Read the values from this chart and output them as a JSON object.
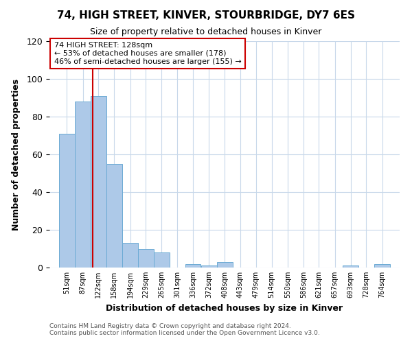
{
  "title": "74, HIGH STREET, KINVER, STOURBRIDGE, DY7 6ES",
  "subtitle": "Size of property relative to detached houses in Kinver",
  "xlabel": "Distribution of detached houses by size in Kinver",
  "ylabel": "Number of detached properties",
  "bar_color": "#adc9e8",
  "bar_edge_color": "#6aaad4",
  "background_color": "#ffffff",
  "grid_color": "#c8d8ea",
  "annotation_box_color": "#cc0000",
  "vline_color": "#cc0000",
  "bin_edges": [
    51,
    87,
    122,
    158,
    194,
    229,
    265,
    301,
    336,
    372,
    408,
    443,
    479,
    514,
    550,
    586,
    621,
    657,
    693,
    728,
    764
  ],
  "bar_heights": [
    71,
    88,
    91,
    55,
    13,
    10,
    8,
    0,
    2,
    1,
    3,
    0,
    0,
    0,
    0,
    0,
    0,
    0,
    1,
    0,
    2
  ],
  "tick_labels": [
    "51sqm",
    "87sqm",
    "122sqm",
    "158sqm",
    "194sqm",
    "229sqm",
    "265sqm",
    "301sqm",
    "336sqm",
    "372sqm",
    "408sqm",
    "443sqm",
    "479sqm",
    "514sqm",
    "550sqm",
    "586sqm",
    "621sqm",
    "657sqm",
    "693sqm",
    "728sqm",
    "764sqm"
  ],
  "ylim": [
    0,
    120
  ],
  "yticks": [
    0,
    20,
    40,
    60,
    80,
    100,
    120
  ],
  "vline_x": 128,
  "annotation_line1": "74 HIGH STREET: 128sqm",
  "annotation_line2": "← 53% of detached houses are smaller (178)",
  "annotation_line3": "46% of semi-detached houses are larger (155) →",
  "footer_line1": "Contains HM Land Registry data © Crown copyright and database right 2024.",
  "footer_line2": "Contains public sector information licensed under the Open Government Licence v3.0."
}
